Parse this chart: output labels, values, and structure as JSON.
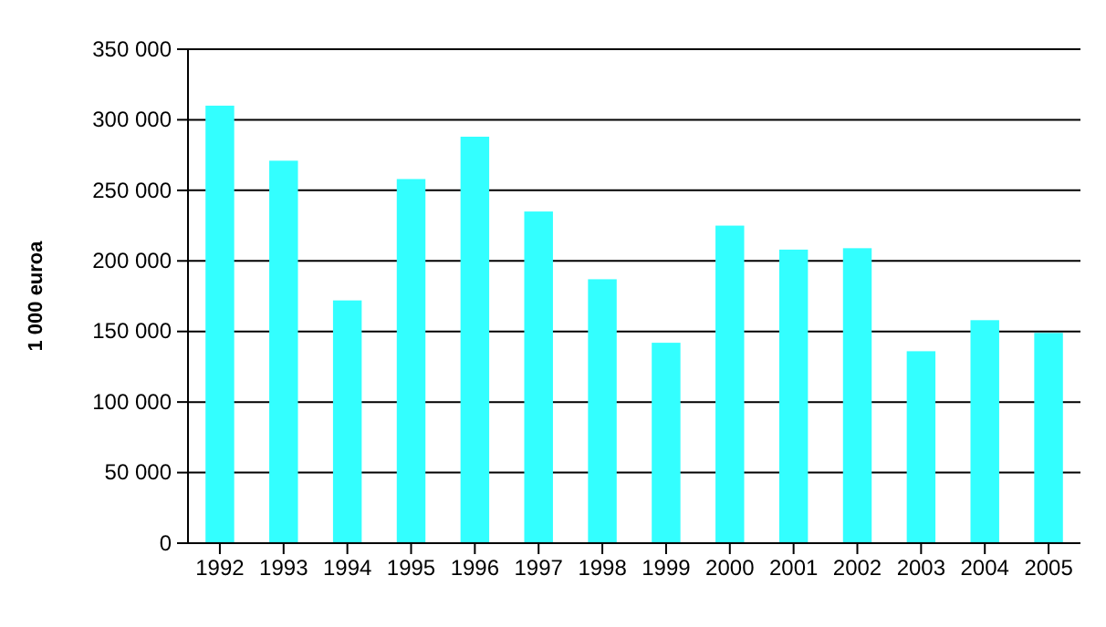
{
  "chart_data": {
    "type": "bar",
    "ylabel": "1 000 euroa",
    "categories": [
      "1992",
      "1993",
      "1994",
      "1995",
      "1996",
      "1997",
      "1998",
      "1999",
      "2000",
      "2001",
      "2002",
      "2003",
      "2004",
      "2005"
    ],
    "values": [
      310000,
      271000,
      172000,
      258000,
      288000,
      235000,
      187000,
      142000,
      225000,
      208000,
      209000,
      136000,
      158000,
      149000
    ],
    "color": "#33ffff",
    "ylim": [
      0,
      350000
    ],
    "yticks": [
      {
        "value": 0,
        "label": "0"
      },
      {
        "value": 50000,
        "label": "50 000"
      },
      {
        "value": 100000,
        "label": "100 000"
      },
      {
        "value": 150000,
        "label": "150 000"
      },
      {
        "value": 200000,
        "label": "200 000"
      },
      {
        "value": 250000,
        "label": "250 000"
      },
      {
        "value": 300000,
        "label": "300 000"
      },
      {
        "value": 350000,
        "label": "350 000"
      }
    ],
    "grid": "y"
  }
}
